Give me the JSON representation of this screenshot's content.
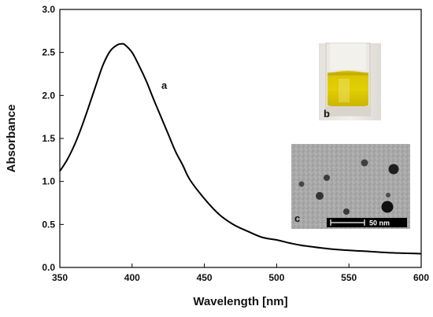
{
  "chart_data": {
    "type": "line",
    "xlabel": "Wavelength [nm]",
    "ylabel": "Absorbance",
    "xlim": [
      350,
      600
    ],
    "ylim": [
      0.0,
      3.0
    ],
    "xticks": [
      350,
      400,
      450,
      500,
      550,
      600
    ],
    "yticks": [
      0.0,
      0.5,
      1.0,
      1.5,
      2.0,
      2.5,
      3.0
    ],
    "xtick_labels": [
      "350",
      "400",
      "450",
      "500",
      "550",
      "600"
    ],
    "ytick_labels": [
      "0.0",
      "0.5",
      "1.0",
      "1.5",
      "2.0",
      "2.5",
      "3.0"
    ],
    "grid": false,
    "series": [
      {
        "label": "a",
        "color": "#000000",
        "x": [
          350,
          355,
          360,
          365,
          370,
          375,
          380,
          385,
          390,
          393,
          395,
          400,
          405,
          410,
          415,
          420,
          425,
          430,
          435,
          440,
          450,
          460,
          470,
          480,
          490,
          500,
          510,
          520,
          540,
          560,
          580,
          600
        ],
        "y": [
          1.12,
          1.25,
          1.42,
          1.63,
          1.87,
          2.12,
          2.36,
          2.52,
          2.59,
          2.6,
          2.59,
          2.5,
          2.34,
          2.16,
          1.95,
          1.75,
          1.55,
          1.35,
          1.19,
          1.02,
          0.8,
          0.62,
          0.5,
          0.42,
          0.35,
          0.32,
          0.28,
          0.25,
          0.21,
          0.19,
          0.17,
          0.16
        ]
      }
    ],
    "insets": [
      {
        "label": "b",
        "scale_bar": ""
      },
      {
        "label": "c",
        "scale_bar": "50 nm"
      }
    ]
  }
}
